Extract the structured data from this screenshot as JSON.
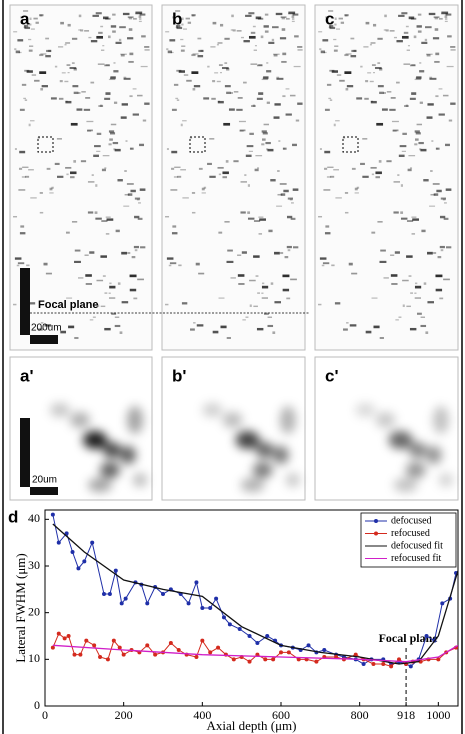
{
  "panels": {
    "labels": [
      "a",
      "b",
      "c"
    ],
    "zoom_labels": [
      "a'",
      "b'",
      "c'"
    ],
    "focal_plane": "Focal plane",
    "scale_bar": "200um",
    "zoom_scale_bar": "20um"
  },
  "chart_data": {
    "type": "line",
    "panel_label": "d",
    "xlabel": "Axial depth (μm)",
    "ylabel": "Lateral FWHM (μm)",
    "xlim": [
      0,
      1050
    ],
    "ylim": [
      0,
      42
    ],
    "xticks": [
      0,
      200,
      400,
      600,
      800,
      918,
      1000
    ],
    "yticks": [
      0,
      10,
      20,
      30,
      40
    ],
    "annotation": {
      "text": "Focal plane",
      "x": 918
    },
    "legend": "upper right",
    "series": [
      {
        "name": "defocused",
        "color": "#1f2fa8",
        "marker": true,
        "x": [
          20,
          35,
          55,
          70,
          85,
          100,
          120,
          150,
          165,
          180,
          195,
          205,
          230,
          245,
          260,
          280,
          300,
          320,
          345,
          365,
          385,
          400,
          420,
          435,
          455,
          470,
          495,
          520,
          540,
          565,
          585,
          600,
          630,
          650,
          670,
          690,
          710,
          740,
          760,
          790,
          810,
          830,
          860,
          880,
          900,
          918,
          930,
          950,
          970,
          990,
          1010,
          1030,
          1045
        ],
        "values": [
          41,
          35,
          37,
          33,
          29.5,
          31,
          35,
          24,
          24,
          29,
          22,
          23,
          26.5,
          26,
          22,
          25.5,
          24,
          25,
          24,
          22,
          26.5,
          21,
          21,
          23,
          19,
          17.5,
          16.5,
          15,
          13.5,
          15,
          14,
          13,
          12.5,
          12,
          13,
          11.5,
          12,
          11,
          10.5,
          10,
          9,
          10,
          10,
          9,
          9.5,
          9,
          8.5,
          10,
          15,
          14,
          22,
          23,
          28.5
        ]
      },
      {
        "name": "refocused",
        "color": "#d42a1e",
        "marker": true,
        "x": [
          20,
          35,
          50,
          60,
          75,
          90,
          105,
          125,
          140,
          160,
          175,
          190,
          200,
          220,
          240,
          260,
          280,
          300,
          320,
          340,
          360,
          385,
          400,
          420,
          440,
          460,
          480,
          500,
          520,
          540,
          560,
          580,
          600,
          620,
          645,
          665,
          690,
          710,
          740,
          760,
          790,
          810,
          835,
          860,
          880,
          900,
          918,
          935,
          955,
          975,
          1000,
          1020,
          1045
        ],
        "values": [
          12.5,
          15.5,
          14.5,
          15,
          11,
          11,
          14,
          13,
          10.5,
          10,
          14,
          12.5,
          11,
          12,
          11.5,
          13,
          11,
          11.5,
          13.5,
          12,
          11,
          10.5,
          14,
          11.5,
          12.5,
          11,
          10,
          10.5,
          9.5,
          11,
          10,
          10,
          11.5,
          11.5,
          10,
          10,
          9.5,
          10.5,
          10.5,
          10,
          11,
          10,
          9,
          9,
          8.5,
          10,
          9,
          9.5,
          9.5,
          10,
          10,
          11.5,
          12.5
        ]
      },
      {
        "name": "defocused fit",
        "color": "#111111",
        "marker": false,
        "x": [
          20,
          100,
          200,
          300,
          400,
          500,
          600,
          700,
          800,
          900,
          950,
          1000,
          1050
        ],
        "values": [
          39,
          33,
          27,
          25,
          23.5,
          17,
          13,
          11.5,
          10.5,
          9,
          9.5,
          15,
          29
        ]
      },
      {
        "name": "refocused fit",
        "color": "#d01fc8",
        "marker": false,
        "x": [
          20,
          200,
          400,
          600,
          800,
          918,
          1000,
          1050
        ],
        "values": [
          13,
          12,
          11,
          10.5,
          10,
          9.5,
          10.5,
          13
        ]
      }
    ]
  }
}
